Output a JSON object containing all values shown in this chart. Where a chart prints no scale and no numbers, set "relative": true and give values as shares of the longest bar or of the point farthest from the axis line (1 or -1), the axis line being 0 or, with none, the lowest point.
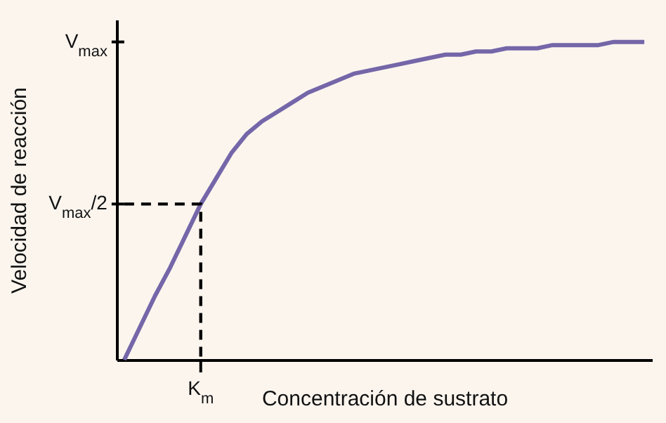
{
  "chart_data": {
    "type": "line",
    "xlabel": "Concentración de sustrato",
    "ylabel": "Velocidad de reacción",
    "relative": true,
    "categories": [
      null,
      null,
      null,
      null,
      null,
      null,
      null,
      null,
      null,
      null,
      null,
      null,
      null,
      null,
      null,
      null,
      null,
      null,
      null,
      null,
      null,
      null,
      null,
      null,
      null,
      null,
      null,
      null,
      null,
      null,
      null,
      null,
      null,
      null,
      null
    ],
    "annotations": [
      "V$_{max}$",
      "K$_{m}$"
    ],
    "ref_lines": [
      {
        "axis": "y",
        "value": 0.49,
        "label": "V$_{max}$/2",
        "color": "#000000",
        "line_style": "dashed"
      }
    ],
    "series": [
      {
        "color": "#7466a8",
        "values": [
          0,
          0.1,
          0.2,
          0.29,
          0.39,
          0.49,
          0.57,
          0.65,
          0.71,
          0.75,
          0.78,
          0.81,
          0.84,
          0.86,
          0.88,
          0.9,
          0.91,
          0.92,
          0.93,
          0.94,
          0.95,
          0.96,
          0.96,
          0.97,
          0.97,
          0.98,
          0.98,
          0.98,
          0.99,
          0.99,
          0.99,
          0.99,
          1,
          1,
          1
        ]
      }
    ]
  }
}
